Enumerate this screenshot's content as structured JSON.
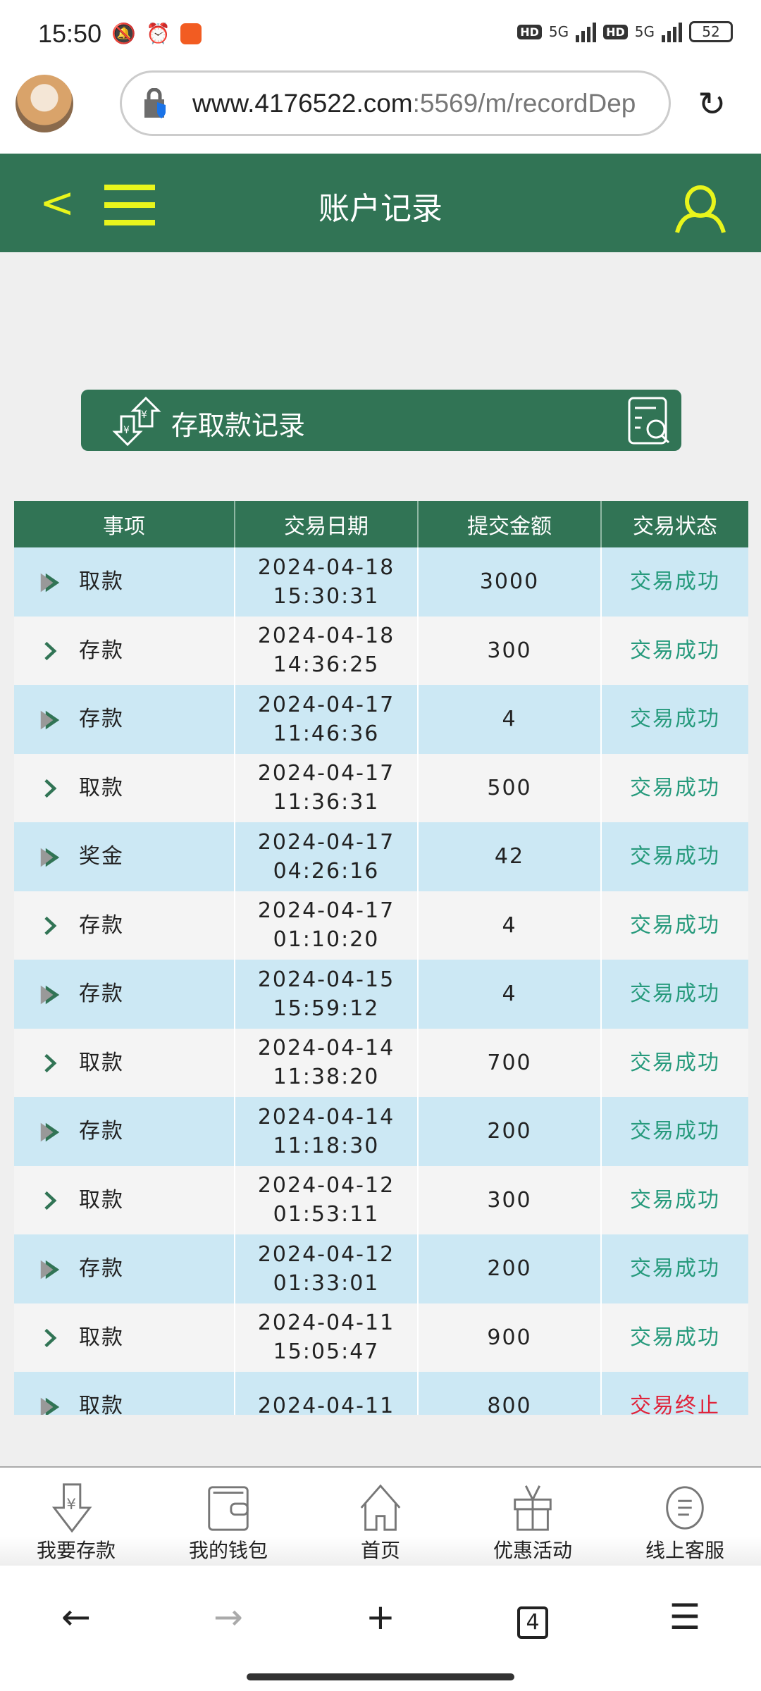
{
  "status_bar": {
    "time": "15:50",
    "battery": "52",
    "network": "5G"
  },
  "browser": {
    "url_host": "www.4176522.com",
    "url_rest": ":5569/m/recordDep",
    "tab_count": "4"
  },
  "header": {
    "title": "账户记录"
  },
  "section": {
    "label": "存取款记录"
  },
  "table": {
    "columns": [
      "事项",
      "交易日期",
      "提交金额",
      "交易状态"
    ],
    "rows": [
      {
        "item": "取款",
        "date": "2024-04-18",
        "time": "15:30:31",
        "amount": "3000",
        "status": "交易成功",
        "ok": true
      },
      {
        "item": "存款",
        "date": "2024-04-18",
        "time": "14:36:25",
        "amount": "300",
        "status": "交易成功",
        "ok": true
      },
      {
        "item": "存款",
        "date": "2024-04-17",
        "time": "11:46:36",
        "amount": "4",
        "status": "交易成功",
        "ok": true
      },
      {
        "item": "取款",
        "date": "2024-04-17",
        "time": "11:36:31",
        "amount": "500",
        "status": "交易成功",
        "ok": true
      },
      {
        "item": "奖金",
        "date": "2024-04-17",
        "time": "04:26:16",
        "amount": "42",
        "status": "交易成功",
        "ok": true
      },
      {
        "item": "存款",
        "date": "2024-04-17",
        "time": "01:10:20",
        "amount": "4",
        "status": "交易成功",
        "ok": true
      },
      {
        "item": "存款",
        "date": "2024-04-15",
        "time": "15:59:12",
        "amount": "4",
        "status": "交易成功",
        "ok": true
      },
      {
        "item": "取款",
        "date": "2024-04-14",
        "time": "11:38:20",
        "amount": "700",
        "status": "交易成功",
        "ok": true
      },
      {
        "item": "存款",
        "date": "2024-04-14",
        "time": "11:18:30",
        "amount": "200",
        "status": "交易成功",
        "ok": true
      },
      {
        "item": "取款",
        "date": "2024-04-12",
        "time": "01:53:11",
        "amount": "300",
        "status": "交易成功",
        "ok": true
      },
      {
        "item": "存款",
        "date": "2024-04-12",
        "time": "01:33:01",
        "amount": "200",
        "status": "交易成功",
        "ok": true
      },
      {
        "item": "取款",
        "date": "2024-04-11",
        "time": "15:05:47",
        "amount": "900",
        "status": "交易成功",
        "ok": true
      },
      {
        "item": "取款",
        "date": "2024-04-11",
        "time": "",
        "amount": "800",
        "status": "交易终止",
        "ok": false
      }
    ]
  },
  "bottom_nav": [
    {
      "label": "我要存款",
      "icon": "deposit-icon"
    },
    {
      "label": "我的钱包",
      "icon": "wallet-icon"
    },
    {
      "label": "首页",
      "icon": "home-icon"
    },
    {
      "label": "优惠活动",
      "icon": "gift-icon"
    },
    {
      "label": "线上客服",
      "icon": "chat-icon"
    }
  ],
  "colors": {
    "brand_green": "#317455",
    "accent_yellow": "#e9f51c",
    "row_blue": "#cce8f4",
    "success": "#269a7c",
    "fail": "#e0233a"
  }
}
